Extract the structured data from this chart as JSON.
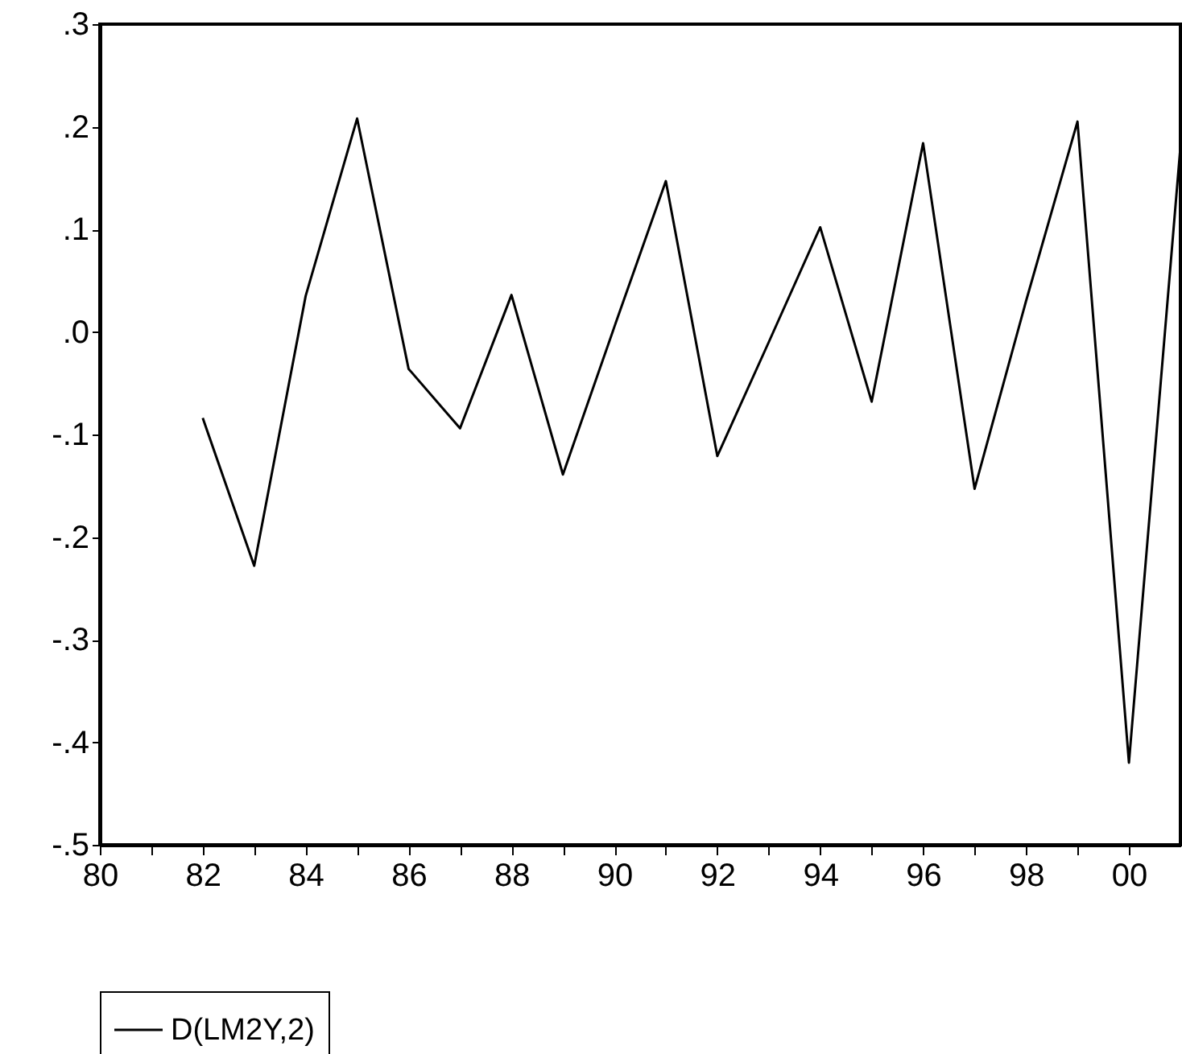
{
  "chart_data": {
    "type": "line",
    "x": [
      1982,
      1983,
      1984,
      1985,
      1986,
      1987,
      1988,
      1989,
      1990,
      1991,
      1992,
      1993,
      1994,
      1995,
      1996,
      1997,
      1998,
      1999,
      2000,
      2001
    ],
    "series": [
      {
        "name": "D(LM2Y,2)",
        "color": "#000000",
        "values": [
          -0.084,
          -0.228,
          0.035,
          0.208,
          -0.036,
          -0.094,
          0.036,
          -0.139,
          0.005,
          0.147,
          -0.121,
          -0.01,
          0.102,
          -0.068,
          0.184,
          -0.153,
          0.03,
          0.205,
          -0.42,
          0.18
        ]
      }
    ],
    "xlim": [
      1980,
      2001
    ],
    "xticks": [
      {
        "value": 1980,
        "label": "80"
      },
      {
        "value": 1981,
        "label": null
      },
      {
        "value": 1982,
        "label": "82"
      },
      {
        "value": 1983,
        "label": null
      },
      {
        "value": 1984,
        "label": "84"
      },
      {
        "value": 1985,
        "label": null
      },
      {
        "value": 1986,
        "label": "86"
      },
      {
        "value": 1987,
        "label": null
      },
      {
        "value": 1988,
        "label": "88"
      },
      {
        "value": 1989,
        "label": null
      },
      {
        "value": 1990,
        "label": "90"
      },
      {
        "value": 1991,
        "label": null
      },
      {
        "value": 1992,
        "label": "92"
      },
      {
        "value": 1993,
        "label": null
      },
      {
        "value": 1994,
        "label": "94"
      },
      {
        "value": 1995,
        "label": null
      },
      {
        "value": 1996,
        "label": "96"
      },
      {
        "value": 1997,
        "label": null
      },
      {
        "value": 1998,
        "label": "98"
      },
      {
        "value": 1999,
        "label": null
      },
      {
        "value": 2000,
        "label": "00"
      }
    ],
    "ylim": [
      -0.5,
      0.3
    ],
    "yticks": [
      {
        "value": -0.5,
        "label": "-.5"
      },
      {
        "value": -0.4,
        "label": "-.4"
      },
      {
        "value": -0.3,
        "label": "-.3"
      },
      {
        "value": -0.2,
        "label": "-.2"
      },
      {
        "value": -0.1,
        "label": "-.1"
      },
      {
        "value": 0,
        "label": ".0"
      },
      {
        "value": 0.1,
        "label": ".1"
      },
      {
        "value": 0.2,
        "label": ".2"
      },
      {
        "value": 0.3,
        "label": ".3"
      }
    ],
    "grid": false,
    "legend": "bottom",
    "line_style": "solid"
  }
}
